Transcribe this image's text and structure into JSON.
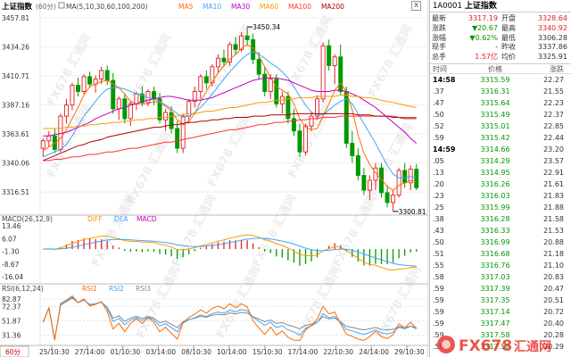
{
  "header": {
    "title": "上证指数",
    "period": "(60分)",
    "ma_label": "MA(5,10,30,60,100,200)",
    "ma_items": [
      {
        "label": "MA5",
        "color": "#ff6a00"
      },
      {
        "label": "MA10",
        "color": "#3ea6ff"
      },
      {
        "label": "MA30",
        "color": "#c000c0"
      },
      {
        "label": "MA60",
        "color": "#ff9900"
      },
      {
        "label": "MA100",
        "color": "#ff3333"
      },
      {
        "label": "MA200",
        "color": "#b00000"
      }
    ],
    "close_glyph": "x"
  },
  "macd_header": {
    "label": "MACD(26,12,9)",
    "items": [
      {
        "label": "DIFF",
        "color": "#ff9900"
      },
      {
        "label": "DEA",
        "color": "#3ea6ff"
      },
      {
        "label": "MACD",
        "color": "#c000c0"
      }
    ]
  },
  "rsi_header": {
    "label": "RSI(6,12,24)",
    "items": [
      {
        "label": "RSI1",
        "color": "#ff6a00"
      },
      {
        "label": "RSI2",
        "color": "#3ea6ff"
      },
      {
        "label": "RSI3",
        "color": "#888888"
      }
    ]
  },
  "period_tab": "60分",
  "chart_data": {
    "type": "candlestick",
    "price_ticks": [
      "3457.81",
      "3434.26",
      "3410.71",
      "3387.16",
      "3363.61",
      "3340.06",
      "3316.51"
    ],
    "price_range": [
      3300,
      3462
    ],
    "high_annotation": "3450.34",
    "low_annotation": "3300.81",
    "macd_ticks": [
      "13.46",
      "6.07",
      "-1.30",
      "-8.67",
      "-16.04"
    ],
    "macd_range": [
      -18,
      15
    ],
    "rsi_ticks": [
      "82.87",
      "72.37",
      "51.87",
      "31.36"
    ],
    "rsi_range": [
      22,
      92
    ],
    "x_labels": [
      "25/10:30",
      "27/14:00",
      "01/10:30",
      "03/14:00",
      "08/10:30",
      "10/14:00",
      "15/10:30",
      "17/14:00",
      "22/10:30",
      "24/14:00",
      "29/10:30"
    ],
    "candles": [
      [
        3352,
        3360,
        3345,
        3358
      ],
      [
        3358,
        3366,
        3353,
        3362
      ],
      [
        3362,
        3368,
        3348,
        3351
      ],
      [
        3351,
        3380,
        3349,
        3378
      ],
      [
        3378,
        3392,
        3372,
        3387
      ],
      [
        3387,
        3405,
        3383,
        3403
      ],
      [
        3403,
        3409,
        3394,
        3398
      ],
      [
        3398,
        3412,
        3396,
        3410
      ],
      [
        3410,
        3414,
        3401,
        3404
      ],
      [
        3404,
        3411,
        3397,
        3408
      ],
      [
        3408,
        3418,
        3404,
        3415
      ],
      [
        3415,
        3419,
        3403,
        3407
      ],
      [
        3407,
        3413,
        3380,
        3384
      ],
      [
        3384,
        3394,
        3375,
        3392
      ],
      [
        3392,
        3396,
        3372,
        3376
      ],
      [
        3376,
        3390,
        3370,
        3388
      ],
      [
        3388,
        3398,
        3383,
        3396
      ],
      [
        3396,
        3402,
        3386,
        3389
      ],
      [
        3389,
        3400,
        3386,
        3398
      ],
      [
        3398,
        3402,
        3387,
        3392
      ],
      [
        3392,
        3397,
        3372,
        3375
      ],
      [
        3375,
        3384,
        3366,
        3381
      ],
      [
        3381,
        3386,
        3364,
        3368
      ],
      [
        3368,
        3374,
        3348,
        3352
      ],
      [
        3352,
        3380,
        3348,
        3378
      ],
      [
        3378,
        3392,
        3372,
        3390
      ],
      [
        3390,
        3402,
        3385,
        3398
      ],
      [
        3398,
        3412,
        3392,
        3410
      ],
      [
        3410,
        3415,
        3400,
        3405
      ],
      [
        3405,
        3420,
        3402,
        3418
      ],
      [
        3418,
        3428,
        3413,
        3425
      ],
      [
        3425,
        3432,
        3418,
        3422
      ],
      [
        3422,
        3438,
        3419,
        3436
      ],
      [
        3436,
        3442,
        3428,
        3432
      ],
      [
        3432,
        3446,
        3430,
        3443
      ],
      [
        3443,
        3450,
        3435,
        3440
      ],
      [
        3440,
        3445,
        3420,
        3424
      ],
      [
        3424,
        3430,
        3408,
        3412
      ],
      [
        3412,
        3418,
        3394,
        3398
      ],
      [
        3398,
        3412,
        3392,
        3408
      ],
      [
        3408,
        3412,
        3385,
        3388
      ],
      [
        3388,
        3398,
        3380,
        3394
      ],
      [
        3394,
        3398,
        3372,
        3376
      ],
      [
        3376,
        3384,
        3362,
        3366
      ],
      [
        3366,
        3372,
        3345,
        3349
      ],
      [
        3349,
        3372,
        3346,
        3370
      ],
      [
        3370,
        3382,
        3366,
        3378
      ],
      [
        3378,
        3395,
        3375,
        3392
      ],
      [
        3392,
        3438,
        3389,
        3435
      ],
      [
        3435,
        3440,
        3415,
        3419
      ],
      [
        3419,
        3428,
        3404,
        3426
      ],
      [
        3426,
        3436,
        3395,
        3398
      ],
      [
        3398,
        3402,
        3352,
        3356
      ],
      [
        3356,
        3366,
        3340,
        3346
      ],
      [
        3346,
        3352,
        3326,
        3330
      ],
      [
        3330,
        3336,
        3314,
        3318
      ],
      [
        3318,
        3330,
        3310,
        3326
      ],
      [
        3326,
        3340,
        3318,
        3336
      ],
      [
        3336,
        3340,
        3312,
        3316
      ],
      [
        3316,
        3322,
        3304,
        3308
      ],
      [
        3308,
        3318,
        3301,
        3314
      ],
      [
        3314,
        3336,
        3312,
        3334
      ],
      [
        3334,
        3340,
        3320,
        3324
      ],
      [
        3324,
        3338,
        3318,
        3335
      ],
      [
        3335,
        3339,
        3318,
        3320
      ]
    ],
    "ma5": [
      3350,
      3353,
      3356,
      3360,
      3367,
      3376,
      3385,
      3395,
      3402,
      3404,
      3406,
      3407,
      3404,
      3401,
      3396,
      3390,
      3388,
      3388,
      3388,
      3390,
      3389,
      3386,
      3382,
      3375,
      3371,
      3374,
      3380,
      3390,
      3398,
      3406,
      3413,
      3419,
      3424,
      3428,
      3433,
      3436,
      3433,
      3427,
      3418,
      3409,
      3402,
      3399,
      3396,
      3388,
      3376,
      3369,
      3367,
      3368,
      3378,
      3388,
      3399,
      3405,
      3398,
      3383,
      3363,
      3348,
      3339,
      3332,
      3327,
      3321,
      3318,
      3322,
      3324,
      3326,
      3325
    ],
    "ma10": [
      3345,
      3347,
      3349,
      3351,
      3355,
      3362,
      3370,
      3378,
      3384,
      3390,
      3396,
      3400,
      3401,
      3401,
      3400,
      3398,
      3396,
      3395,
      3393,
      3392,
      3390,
      3387,
      3384,
      3380,
      3377,
      3378,
      3381,
      3385,
      3390,
      3396,
      3402,
      3408,
      3414,
      3419,
      3424,
      3428,
      3430,
      3428,
      3425,
      3421,
      3418,
      3414,
      3409,
      3402,
      3394,
      3387,
      3381,
      3379,
      3379,
      3383,
      3387,
      3390,
      3392,
      3388,
      3380,
      3372,
      3364,
      3356,
      3347,
      3338,
      3331,
      3328,
      3328,
      3329,
      3328
    ],
    "ma30": [
      3362,
      3362,
      3363,
      3364,
      3365,
      3367,
      3369,
      3371,
      3373,
      3376,
      3378,
      3380,
      3382,
      3384,
      3385,
      3387,
      3388,
      3390,
      3391,
      3392,
      3393,
      3394,
      3394,
      3393,
      3392,
      3391,
      3391,
      3391,
      3392,
      3393,
      3395,
      3397,
      3399,
      3401,
      3403,
      3405,
      3407,
      3408,
      3409,
      3409,
      3409,
      3408,
      3407,
      3405,
      3403,
      3401,
      3399,
      3398,
      3398,
      3398,
      3399,
      3399,
      3398,
      3396,
      3394,
      3391,
      3388,
      3385,
      3381,
      3377,
      3373,
      3369,
      3365,
      3360,
      3356
    ],
    "ma60": [
      3368,
      3368,
      3368,
      3368,
      3369,
      3369,
      3370,
      3370,
      3371,
      3371,
      3372,
      3372,
      3373,
      3373,
      3374,
      3374,
      3375,
      3375,
      3376,
      3376,
      3377,
      3377,
      3378,
      3378,
      3379,
      3380,
      3380,
      3381,
      3382,
      3382,
      3383,
      3384,
      3385,
      3385,
      3386,
      3387,
      3388,
      3389,
      3389,
      3390,
      3391,
      3391,
      3392,
      3392,
      3393,
      3393,
      3393,
      3394,
      3394,
      3394,
      3394,
      3395,
      3395,
      3394,
      3394,
      3393,
      3393,
      3392,
      3391,
      3390,
      3389,
      3388,
      3387,
      3386,
      3385
    ],
    "ma100": [
      3342,
      3342,
      3343,
      3343,
      3344,
      3345,
      3345,
      3346,
      3347,
      3347,
      3348,
      3349,
      3349,
      3350,
      3351,
      3352,
      3352,
      3353,
      3354,
      3355,
      3356,
      3357,
      3357,
      3358,
      3359,
      3360,
      3361,
      3362,
      3363,
      3364,
      3365,
      3366,
      3367,
      3367,
      3368,
      3369,
      3370,
      3371,
      3371,
      3372,
      3373,
      3373,
      3374,
      3374,
      3375,
      3375,
      3376,
      3376,
      3377,
      3377,
      3377,
      3378,
      3378,
      3378,
      3378,
      3378,
      3378,
      3378,
      3378,
      3378,
      3378,
      3377,
      3377,
      3377,
      3377
    ],
    "ma200": [
      3342,
      3344,
      3346,
      3348,
      3350,
      3352,
      3354,
      3355,
      3357,
      3358,
      3359,
      3361,
      3362,
      3363,
      3364,
      3365,
      3366,
      3367,
      3368,
      3369,
      3369,
      3370,
      3371,
      3371,
      3372,
      3373,
      3373,
      3374,
      3374,
      3375,
      3375,
      3376,
      3376,
      3377,
      3377,
      3377,
      3378,
      3378,
      3378,
      3379,
      3379,
      3379,
      3379,
      3380,
      3380,
      3380,
      3380,
      3380,
      3380,
      3380,
      3380,
      3380,
      3380,
      3380,
      3379,
      3379,
      3379,
      3378,
      3378,
      3378,
      3377,
      3377,
      3376,
      3376,
      3376
    ]
  },
  "quote": {
    "code": "1A0001",
    "name": "上证指数",
    "rows": [
      {
        "l1": "最新",
        "v1": "3317.19",
        "c1": "red",
        "l2": "开盘",
        "v2": "3328.64",
        "c2": "red"
      },
      {
        "l1": "涨跌",
        "v1": "▼20.67",
        "c1": "green",
        "l2": "最高",
        "v2": "3340.92",
        "c2": "red"
      },
      {
        "l1": "涨幅",
        "v1": "▼0.62%",
        "c1": "green",
        "l2": "最低",
        "v2": "3306.28",
        "c2": "black"
      },
      {
        "l1": "现手",
        "v1": "-",
        "c1": "black",
        "l2": "昨收",
        "v2": "3337.86",
        "c2": "black"
      },
      {
        "l1": "总手",
        "v1": "1.57亿",
        "c1": "red",
        "l2": "均价",
        "v2": "3325.91",
        "c2": "black"
      }
    ]
  },
  "ticks_header": {
    "time": "时间",
    "price": "价格",
    "change": "涨跌"
  },
  "ticks": [
    {
      "t": "14:58",
      "p": "3315.59",
      "v": "22.27",
      "bold": true
    },
    {
      "t": ".37",
      "p": "3316.31",
      "v": "21.55"
    },
    {
      "t": ".47",
      "p": "3315.64",
      "v": "22.23"
    },
    {
      "t": ".50",
      "p": "3315.49",
      "v": "22.37"
    },
    {
      "t": ".52",
      "p": "3315.01",
      "v": "22.85"
    },
    {
      "t": ".59",
      "p": "3315.42",
      "v": "22.44"
    },
    {
      "t": "14:59",
      "p": "3314.66",
      "v": "23.20",
      "bold": true
    },
    {
      "t": ".05",
      "p": "3314.29",
      "v": "23.57"
    },
    {
      "t": ".13",
      "p": "3314.95",
      "v": "22.91"
    },
    {
      "t": ".20",
      "p": "3316.26",
      "v": "21.61"
    },
    {
      "t": ".23",
      "p": "3316.03",
      "v": "21.83"
    },
    {
      "t": ".25",
      "p": "3315.99",
      "v": "21.88"
    },
    {
      "t": ".38",
      "p": "3316.28",
      "v": "21.58"
    },
    {
      "t": ".43",
      "p": "3316.33",
      "v": "21.53"
    },
    {
      "t": ".50",
      "p": "3316.99",
      "v": "20.88"
    },
    {
      "t": ".51",
      "p": "3316.68",
      "v": "21.18"
    },
    {
      "t": ".55",
      "p": "3316.76",
      "v": "21.10"
    },
    {
      "t": ".58",
      "p": "3317.03",
      "v": "20.83"
    },
    {
      "t": ".59",
      "p": "3317.39",
      "p2": "",
      "v": "20.47"
    },
    {
      "t": ".59",
      "p": "3317.35",
      "v": "20.51"
    },
    {
      "t": ".59",
      "p": "3317.14",
      "v": "20.72"
    },
    {
      "t": ".59",
      "p": "3317.47",
      "v": "20.40"
    },
    {
      "t": ".59",
      "p": "3317.58",
      "v": "20.28"
    },
    {
      "t": ".59",
      "p": "3317.58",
      "v": "20.29"
    }
  ],
  "watermark": "FX678 汇通网",
  "brand": {
    "text": "FX678",
    "sub": "汇通网",
    "color": "#e8382e"
  }
}
